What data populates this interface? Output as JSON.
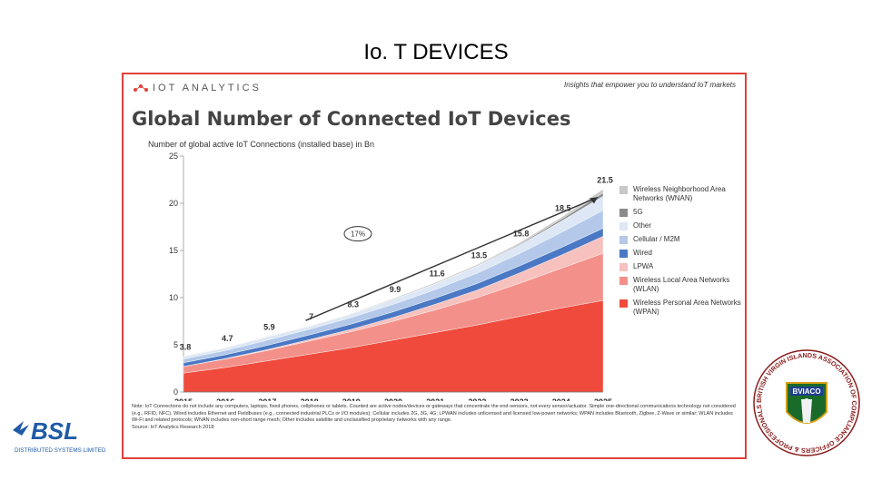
{
  "slide": {
    "title": "Io. T DEVICES"
  },
  "header": {
    "brand": "IOT ANALYTICS",
    "tagline": "Insights that empower you to understand IoT markets"
  },
  "chart_data": {
    "type": "area",
    "title": "Global Number of Connected IoT Devices",
    "ylabel": "Number of global active IoT Connections (installed base) in Bn",
    "xlabel": "",
    "x": [
      "2015",
      "2016",
      "2017",
      "2018",
      "2019",
      "2020",
      "2021",
      "2022",
      "2023",
      "2024",
      "2025"
    ],
    "ylim": [
      0,
      25
    ],
    "yticks": [
      0,
      5,
      10,
      15,
      20,
      25
    ],
    "totals": [
      3.8,
      4.7,
      5.9,
      7.0,
      8.3,
      9.9,
      11.6,
      13.5,
      15.8,
      18.5,
      21.5
    ],
    "cagr_label": "17%",
    "series": [
      {
        "name": "Wireless Personal Area Networks (WPAN)",
        "color": "#f04a3c",
        "values": [
          2.0,
          2.6,
          3.3,
          4.0,
          4.7,
          5.5,
          6.3,
          7.1,
          8.0,
          8.9,
          9.7
        ]
      },
      {
        "name": "Wireless Local Area Networks (WLAN)",
        "color": "#f4908a",
        "values": [
          0.7,
          0.9,
          1.1,
          1.4,
          1.7,
          2.0,
          2.4,
          2.9,
          3.5,
          4.2,
          5.0
        ]
      },
      {
        "name": "LPWA",
        "color": "#f7c1bd",
        "values": [
          0.0,
          0.05,
          0.1,
          0.15,
          0.25,
          0.4,
          0.6,
          0.8,
          1.1,
          1.4,
          1.8
        ]
      },
      {
        "name": "Wired",
        "color": "#4a78c4",
        "values": [
          0.4,
          0.4,
          0.45,
          0.5,
          0.55,
          0.6,
          0.65,
          0.7,
          0.75,
          0.8,
          0.85
        ]
      },
      {
        "name": "Cellular / M2M",
        "color": "#b4c8ea",
        "values": [
          0.4,
          0.45,
          0.55,
          0.6,
          0.7,
          0.8,
          0.9,
          1.1,
          1.3,
          1.6,
          1.9
        ]
      },
      {
        "name": "Other",
        "color": "#dde7f5",
        "values": [
          0.25,
          0.25,
          0.35,
          0.3,
          0.35,
          0.5,
          0.6,
          0.7,
          0.9,
          1.2,
          1.5
        ]
      },
      {
        "name": "5G",
        "color": "#8a8a8a",
        "values": [
          0.0,
          0.0,
          0.0,
          0.0,
          0.0,
          0.0,
          0.02,
          0.05,
          0.1,
          0.2,
          0.35
        ]
      },
      {
        "name": "Wireless Neighborhood Area Networks (WNAN)",
        "color": "#c8c8c8",
        "values": [
          0.05,
          0.05,
          0.05,
          0.05,
          0.05,
          0.1,
          0.13,
          0.15,
          0.15,
          0.2,
          0.4
        ]
      }
    ],
    "legend_order": [
      "Wireless Neighborhood Area Networks (WNAN)",
      "5G",
      "Other",
      "Cellular / M2M",
      "Wired",
      "LPWA",
      "Wireless Local Area Networks (WLAN)",
      "Wireless Personal Area Networks (WPAN)"
    ],
    "legend_placement": "right"
  },
  "notes": {
    "text": "Note: IoT Connections do not include any computers, laptops, fixed phones, cellphones or tablets. Counted are active nodes/devices or gateways that concentrate the end-sensors, not every sensor/actuator. Simple one-directional communications technology not considered (e.g., RFID, NFC). Wired includes Ethernet and Fieldbuses (e.g., connected industrial PLCs or I/O modules); Cellular includes 2G, 3G, 4G; LPWAN includes unlicensed and licensed low-power networks; WPAN includes Bluetooth, Zigbee, Z-Wave or similar; WLAN includes Wi-Fi and related protocols; WNAN includes non-short range mesh; Other includes satellite and unclassified proprietary networks with any range.",
    "source": "Source: IoT Analytics Research 2018"
  },
  "logos": {
    "left_name": "BSL",
    "left_sub": "DISTRIBUTED SYSTEMS LIMITED",
    "right_name": "BVIACO",
    "right_ring": "BRITISH VIRGIN ISLANDS ASSOCIATION OF COMPLIANCE OFFICERS & PROFESSIONALS"
  },
  "colors": {
    "frame": "#e0413a",
    "arrow": "#333333"
  }
}
